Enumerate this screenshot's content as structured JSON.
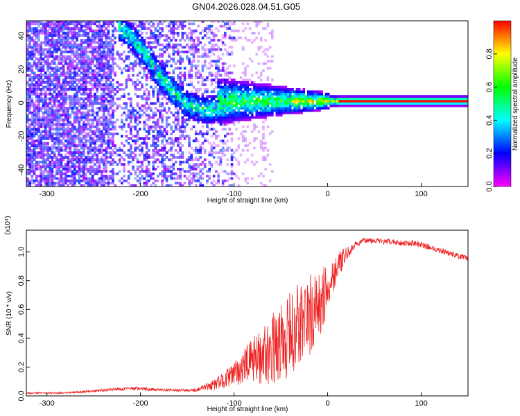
{
  "title": "GN04.2026.028.04.51.G05",
  "chart_data": [
    {
      "type": "heatmap",
      "xlabel": "Height of straight line (km)",
      "ylabel": "Frequency (Hz)",
      "xlim": [
        -322,
        150
      ],
      "ylim": [
        -50,
        49
      ],
      "xticks": [
        "-300",
        "-200",
        "-100",
        "0",
        "100"
      ],
      "yticks": [
        "-40",
        "-20",
        "0",
        "20",
        "40"
      ],
      "colorbar": {
        "label": "Normalized spectral amplitude",
        "range": [
          0,
          1
        ],
        "ticks": [
          "0.0",
          "0.2",
          "0.4",
          "0.6",
          "0.8"
        ],
        "colormap": [
          "#ff00ff",
          "#0000ff",
          "#00ffff",
          "#00ff00",
          "#ffff00",
          "#ff0000"
        ]
      },
      "features": [
        {
          "region": "noise",
          "x": [
            -322,
            -100
          ],
          "y": [
            -50,
            49
          ],
          "level": 0.15
        },
        {
          "region": "drifting-tone",
          "x": [
            [
              -225,
              45
            ],
            [
              -210,
              38
            ],
            [
              -195,
              28
            ],
            [
              -180,
              15
            ],
            [
              -165,
              5
            ],
            [
              -150,
              -2
            ],
            [
              -130,
              -5
            ],
            [
              -110,
              -3
            ]
          ],
          "level": 0.35
        },
        {
          "region": "carrier",
          "x": [
            -120,
            150
          ],
          "y": 0.5,
          "level": 0.95
        }
      ]
    },
    {
      "type": "line",
      "xlabel": "Height of straight line (km)",
      "ylabel": "SNR (10 * v/v)",
      "scale_label": "(x10⁴)",
      "xlim": [
        -322,
        150
      ],
      "ylim": [
        0,
        1.15
      ],
      "xticks": [
        "-300",
        "-200",
        "-100",
        "0",
        "100"
      ],
      "yticks": [
        "0.0",
        "0.2",
        "0.4",
        "0.6",
        "0.8",
        "1.0"
      ],
      "color": "#ee2222",
      "series": [
        {
          "x": [
            -322,
            -300,
            -280,
            -260,
            -240,
            -220,
            -200,
            -180,
            -160,
            -140,
            -120,
            -100,
            -90,
            -80,
            -70,
            -60,
            -50,
            -40,
            -30,
            -20,
            -10,
            0,
            10,
            20,
            30,
            40,
            50,
            60,
            70,
            80,
            90,
            100,
            110,
            120,
            130,
            140,
            150
          ],
          "values": [
            0.02,
            0.02,
            0.02,
            0.03,
            0.04,
            0.05,
            0.05,
            0.04,
            0.04,
            0.04,
            0.08,
            0.15,
            0.2,
            0.25,
            0.28,
            0.32,
            0.37,
            0.42,
            0.5,
            0.55,
            0.6,
            0.75,
            0.9,
            0.98,
            1.05,
            1.08,
            1.08,
            1.07,
            1.07,
            1.06,
            1.06,
            1.05,
            1.03,
            1.01,
            0.99,
            0.97,
            0.95
          ],
          "noise": [
            0.005,
            0.005,
            0.006,
            0.008,
            0.01,
            0.012,
            0.012,
            0.01,
            0.01,
            0.012,
            0.04,
            0.08,
            0.12,
            0.16,
            0.2,
            0.24,
            0.28,
            0.3,
            0.32,
            0.3,
            0.25,
            0.18,
            0.1,
            0.05,
            0.02,
            0.02,
            0.02,
            0.02,
            0.02,
            0.02,
            0.02,
            0.02,
            0.02,
            0.02,
            0.02,
            0.02,
            0.02
          ]
        }
      ]
    }
  ]
}
